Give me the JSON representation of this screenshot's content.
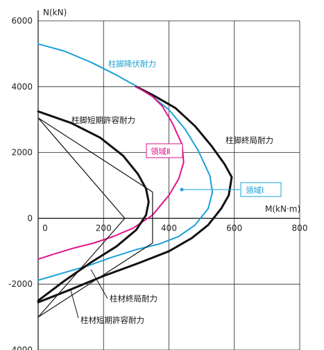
{
  "chart_data": {
    "type": "line",
    "xlabel": "M(kN·m)",
    "ylabel": "N(kN)",
    "xlim": [
      0,
      800
    ],
    "ylim": [
      -4000,
      6000
    ],
    "x_ticks": [
      "0",
      "200",
      "400",
      "600",
      "800"
    ],
    "y_ticks": [
      "6000",
      "4000",
      "2000",
      "0",
      "-2000",
      "-4000"
    ],
    "grid": true,
    "series": [
      {
        "name": "柱脚降伏耐力",
        "color": "#1aa0d8",
        "x": [
          0,
          80,
          160,
          240,
          330,
          400,
          450,
          490,
          525,
          533,
          520,
          480,
          430,
          370,
          300,
          220,
          150,
          80,
          0
        ],
        "y": [
          5300,
          5080,
          4750,
          4350,
          3850,
          3300,
          2700,
          2050,
          1300,
          800,
          300,
          -200,
          -550,
          -780,
          -950,
          -1200,
          -1450,
          -1650,
          -1880
        ]
      },
      {
        "name": "柱脚終局耐力",
        "color": "#111111",
        "x": [
          300,
          350,
          420,
          480,
          530,
          570,
          592,
          583,
          560,
          520,
          470,
          400,
          310,
          200,
          90,
          0
        ],
        "y": [
          4000,
          3750,
          3350,
          2800,
          2200,
          1650,
          1250,
          700,
          300,
          -200,
          -600,
          -1000,
          -1350,
          -1750,
          -2200,
          -2550
        ]
      },
      {
        "name": "領域Ⅱ",
        "color": "#e0138c",
        "x": [
          300,
          350,
          380,
          410,
          440,
          445,
          430,
          400,
          350,
          290,
          230,
          170,
          110,
          50,
          0
        ],
        "y": [
          4000,
          3700,
          3400,
          2900,
          2250,
          1700,
          1200,
          700,
          100,
          -300,
          -550,
          -750,
          -900,
          -1080,
          -1240
        ]
      },
      {
        "name": "柱脚短期許容耐力",
        "color": "#111111",
        "x": [
          0,
          100,
          190,
          260,
          305,
          330,
          338,
          330,
          300,
          240,
          160,
          80,
          0
        ],
        "y": [
          3250,
          2900,
          2450,
          1900,
          1350,
          900,
          500,
          100,
          -350,
          -850,
          -1350,
          -1900,
          -2500
        ]
      },
      {
        "name": "柱材終局耐力",
        "color": "#111111",
        "x": [
          0,
          350,
          350,
          0
        ],
        "y": [
          3050,
          800,
          -750,
          -3000
        ]
      },
      {
        "name": "柱材短期許容耐力",
        "color": "#111111",
        "x": [
          0,
          265,
          0
        ],
        "y": [
          3050,
          0,
          -3000
        ]
      }
    ],
    "annotations": [
      {
        "text": "柱脚降伏耐力",
        "color": "#1aa0d8"
      },
      {
        "text": "柱脚短期許容耐力",
        "color": "#111111"
      },
      {
        "text": "柱脚終局耐力",
        "color": "#111111"
      },
      {
        "text": "領域Ⅱ",
        "color": "#e0138c",
        "boxed": true
      },
      {
        "text": "領域Ⅰ",
        "color": "#1aa0d8",
        "boxed": true
      },
      {
        "text": "柱材終局耐力",
        "color": "#111111"
      },
      {
        "text": "柱材短期許容耐力",
        "color": "#111111"
      }
    ]
  }
}
